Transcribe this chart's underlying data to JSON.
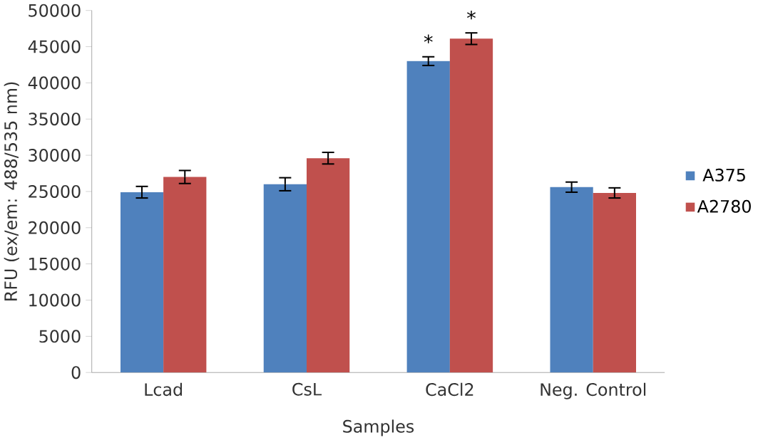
{
  "chart_data": {
    "type": "bar",
    "xlabel": "Samples",
    "ylabel": "RFU (ex/em: 488/535 nm)",
    "categories": [
      "Lcad",
      "CsL",
      "CaCl2",
      "Neg. Control"
    ],
    "series": [
      {
        "name": "A375",
        "color": "#4f81bd",
        "values": [
          24900,
          26000,
          43000,
          25600
        ],
        "errors": [
          800,
          900,
          600,
          700
        ]
      },
      {
        "name": "A2780",
        "color": "#c0504d",
        "values": [
          27000,
          29600,
          46100,
          24800
        ],
        "errors": [
          900,
          800,
          800,
          700
        ]
      }
    ],
    "annotations": [
      {
        "text": "*",
        "x": "CaCl2",
        "y": 43000
      },
      {
        "text": "*",
        "x": "CaCl2",
        "y": 46100
      }
    ],
    "ylim": [
      0,
      50000
    ],
    "yticks": [
      0,
      5000,
      10000,
      15000,
      20000,
      25000,
      30000,
      35000,
      40000,
      45000,
      50000
    ],
    "legend": "right",
    "grid": false
  }
}
